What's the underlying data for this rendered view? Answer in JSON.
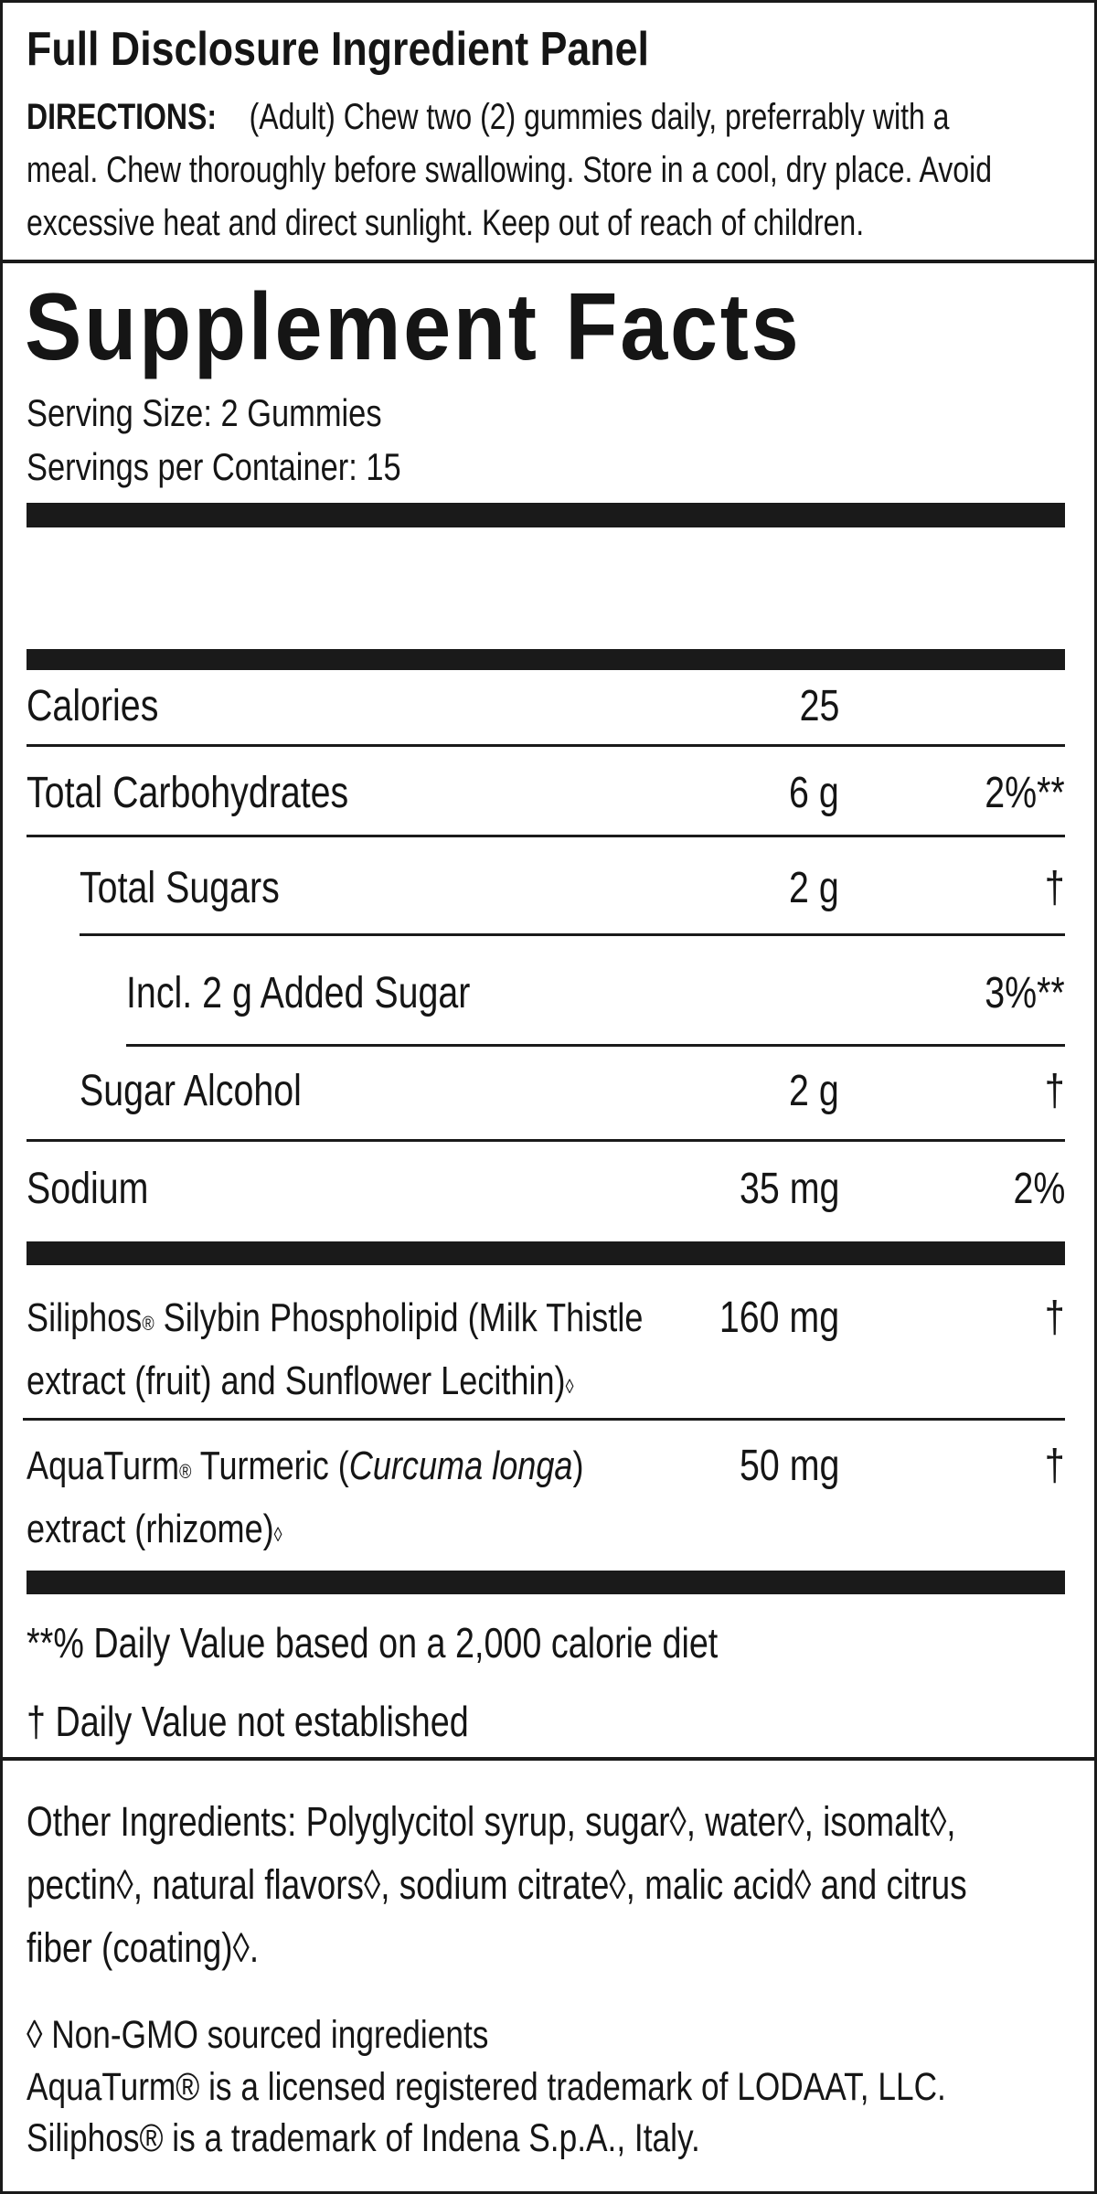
{
  "header": {
    "title": "Full Disclosure Ingredient Panel",
    "directions_label": "DIRECTIONS:",
    "directions_lines": [
      "(Adult) Chew two (2) gummies daily, preferrably with a",
      "meal. Chew thoroughly before swallowing. Store in a cool, dry place. Avoid",
      "excessive heat and direct sunlight. Keep out of reach of children."
    ]
  },
  "facts": {
    "title": "Supplement Facts",
    "serving_size": "Serving Size:  2 Gummies",
    "servings_per_container": "Servings per Container:  15",
    "rows": [
      {
        "name": "Calories",
        "amount": "25",
        "dv": ""
      },
      {
        "name": "Total Carbohydrates",
        "amount": "6 g",
        "dv": "2%**"
      },
      {
        "name": "Total Sugars",
        "amount": "2 g",
        "dv": "†"
      },
      {
        "name": "Incl. 2 g Added Sugar",
        "amount": "",
        "dv": "3%**"
      },
      {
        "name": "Sugar Alcohol",
        "amount": "2 g",
        "dv": "†"
      },
      {
        "name": "Sodium",
        "amount": "35 mg",
        "dv": "2%"
      }
    ],
    "ingredients": [
      {
        "line1_a": "Siliphos",
        "reg": "®",
        "line1_b": " Silybin Phospholipid (Milk Thistle",
        "line2": "extract (fruit) and Sunflower Lecithin)",
        "mark": "◊",
        "amount": "160 mg",
        "dv": "†"
      },
      {
        "line1_a": "AquaTurm",
        "reg": "®",
        "line1_b": " Turmeric (",
        "italic": "Curcuma longa",
        "line1_c": ")",
        "line2": "extract (rhizome)",
        "mark": "◊",
        "amount": "50 mg",
        "dv": "†"
      }
    ],
    "footnote_dv": "**% Daily Value based on a 2,000 calorie diet",
    "footnote_dagger": "† Daily Value not established"
  },
  "other": {
    "lines": [
      "Other Ingredients:  Polyglycitol syrup, sugar◊, water◊, isomalt◊,",
      "pectin◊, natural flavors◊, sodium citrate◊, malic acid◊ and citrus",
      "fiber (coating)◊."
    ],
    "non_gmo": "◊ Non-GMO sourced ingredients",
    "trademark_aquaturm": "AquaTurm® is a licensed registered trademark of LODAAT, LLC.",
    "trademark_siliphos": "Siliphos® is a trademark of Indena S.p.A., Italy."
  }
}
